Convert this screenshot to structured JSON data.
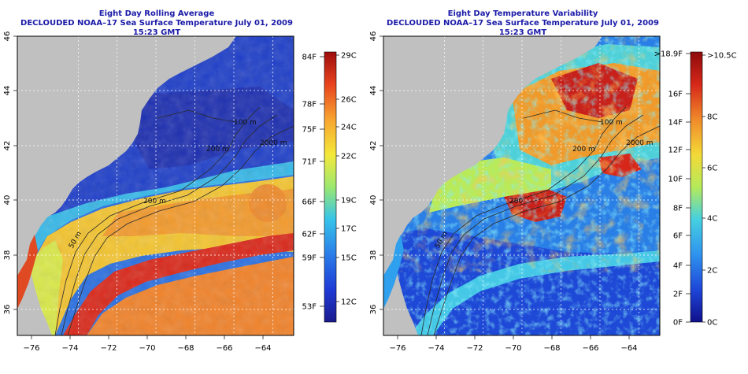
{
  "left_panel": {
    "title_line1": "Eight Day Rolling Average",
    "title_line2": "DECLOUDED NOAA–17 Sea Surface Temperature July 01, 2009 15:23 GMT",
    "colorbar_fahrenheit": [
      "84F",
      "78F",
      "75F",
      "71F",
      "66F",
      "62F",
      "59F",
      "53F"
    ],
    "colorbar_celsius": [
      "29C",
      "26C",
      "24C",
      "22C",
      "19C",
      "17C",
      "15C",
      "12C"
    ],
    "contour_labels": [
      "100 m",
      "200 m",
      "2000 m",
      "200 m",
      "50 m"
    ]
  },
  "right_panel": {
    "title_line1": "Eight Day Temperature Variability",
    "title_line2": "DECLOUDED NOAA–17 Sea Surface Temperature July 01, 2009 15:23 GMT",
    "colorbar_fahrenheit": [
      ">18.9F",
      "16F",
      "14F",
      "12F",
      "10F",
      "8F",
      "6F",
      "4F",
      "2F",
      "0F"
    ],
    "colorbar_celsius": [
      ">10.5C",
      "8C",
      "6C",
      "4C",
      "2C",
      "0C"
    ],
    "contour_labels": [
      "100 m",
      "200 m",
      "2000 m",
      "200",
      "50 m"
    ]
  },
  "x_ticks": [
    "−76",
    "−74",
    "−72",
    "−70",
    "−68",
    "−66",
    "−64"
  ],
  "y_ticks": [
    "46",
    "44",
    "42",
    "40",
    "38",
    "36"
  ],
  "colors": {
    "land": "#c0c0c0",
    "title": "#1a1aa8",
    "sst_scale": [
      "#1a1a8c",
      "#1f3bd6",
      "#2a7de8",
      "#36c3ea",
      "#9be870",
      "#f5e83a",
      "#f7a530",
      "#e8431e",
      "#9e0d0d"
    ],
    "var_scale": [
      "#10108a",
      "#1e46d8",
      "#2f93ee",
      "#45d0e0",
      "#b6ea5a",
      "#f3d937",
      "#f08a2a",
      "#d6271a",
      "#8d0b0b"
    ]
  }
}
